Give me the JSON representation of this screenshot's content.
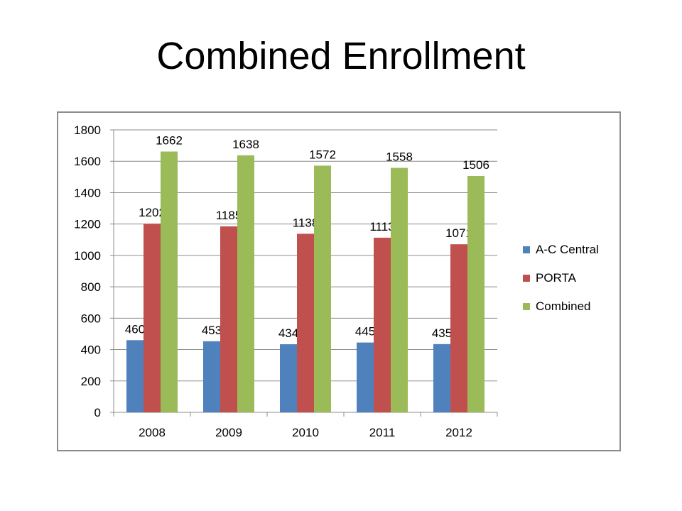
{
  "slide": {
    "title": "Combined Enrollment"
  },
  "chart_data": {
    "type": "bar",
    "title": "",
    "xlabel": "",
    "ylabel": "",
    "categories": [
      "2008",
      "2009",
      "2010",
      "2011",
      "2012"
    ],
    "series": [
      {
        "name": "A-C Central",
        "color": "#4f81bd",
        "values": [
          460,
          453,
          434,
          445,
          435
        ]
      },
      {
        "name": "PORTA",
        "color": "#c0504d",
        "values": [
          1202,
          1185,
          1138,
          1113,
          1071
        ]
      },
      {
        "name": "Combined",
        "color": "#9bbb59",
        "values": [
          1662,
          1638,
          1572,
          1558,
          1506
        ]
      }
    ],
    "ylim": [
      0,
      1800
    ],
    "yticks": [
      "0",
      "200",
      "400",
      "600",
      "800",
      "1000",
      "1200",
      "1400",
      "1600",
      "1800"
    ],
    "grid": true,
    "legend_position": "right",
    "data_labels": true
  }
}
